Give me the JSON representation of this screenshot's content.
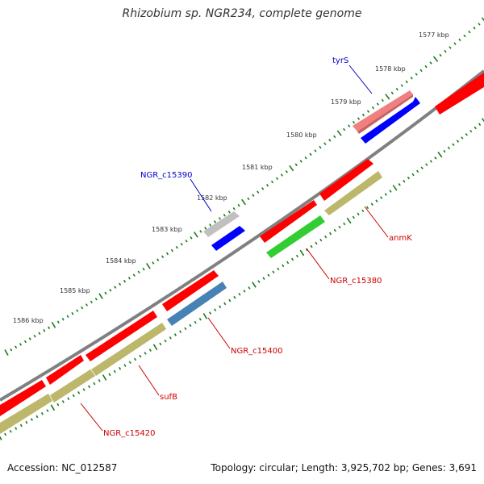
{
  "header": {
    "title": "Rhizobium sp. NGR234, complete genome"
  },
  "footer": {
    "accession": "Accession: NC_012587",
    "summary": "Topology: circular; Length: 3,925,702 bp; Genes: 3,691"
  },
  "scale": {
    "ticks": [
      "1577 kbp",
      "1578 kbp",
      "1579 kbp",
      "1580 kbp",
      "1581 kbp",
      "1582 kbp",
      "1583 kbp",
      "1584 kbp",
      "1585 kbp",
      "1586 kbp"
    ]
  },
  "colors": {
    "backbone": "#808080",
    "tick": "#1a7a1a",
    "label_forward": "#0000cc",
    "label_reverse": "#cc0000",
    "red": "#ff0000",
    "pink": "#f08080",
    "blue": "#0000ff",
    "steelblue": "#4682b4",
    "green": "#32cd32",
    "olive": "#bdb76b",
    "silver": "#c0c0c0"
  },
  "labels": [
    {
      "text": "tyrS",
      "color": "label_forward"
    },
    {
      "text": "NGR_c15390",
      "color": "label_forward"
    },
    {
      "text": "anmK",
      "color": "label_reverse"
    },
    {
      "text": "NGR_c15380",
      "color": "label_reverse"
    },
    {
      "text": "NGR_c15400",
      "color": "label_reverse"
    },
    {
      "text": "sufB",
      "color": "label_reverse"
    },
    {
      "text": "NGR_c15420",
      "color": "label_reverse"
    }
  ]
}
